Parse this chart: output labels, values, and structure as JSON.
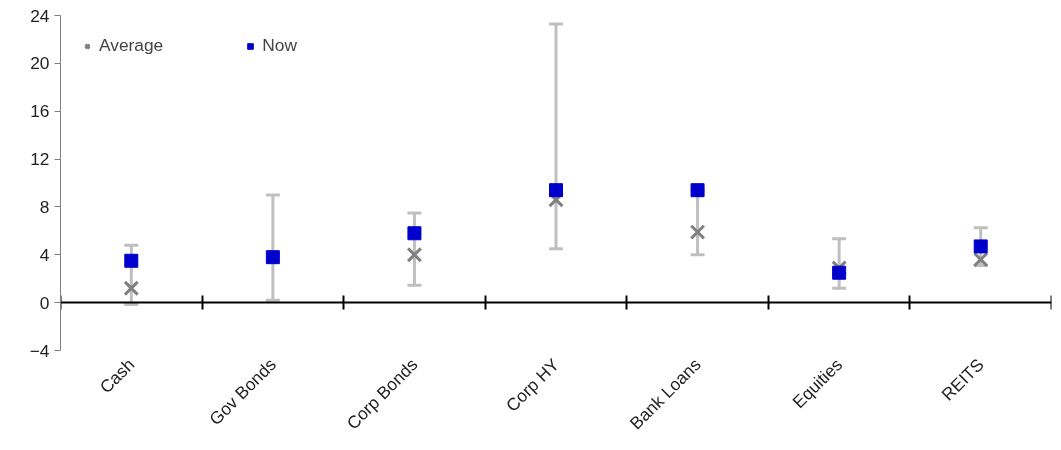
{
  "chart_data": {
    "type": "scatter",
    "categories": [
      "Cash",
      "Gov Bonds",
      "Corp Bonds",
      "Corp HY",
      "Bank Loans",
      "Equities",
      "REITS"
    ],
    "series": [
      {
        "name": "Average",
        "color": "#808080",
        "marker": "cross",
        "values": [
          1.2,
          null,
          4.0,
          8.6,
          5.9,
          2.9,
          3.6
        ]
      },
      {
        "name": "Now",
        "color": "#0000cc",
        "marker": "square",
        "values": [
          3.5,
          3.8,
          5.8,
          9.4,
          9.4,
          2.5,
          4.7
        ],
        "errors": [
          [
            -0.15,
            4.8
          ],
          [
            0.2,
            9.0
          ],
          [
            1.45,
            7.5
          ],
          [
            4.5,
            23.3
          ],
          [
            4.0,
            9.4
          ],
          [
            1.2,
            5.35
          ],
          [
            3.1,
            6.25
          ]
        ]
      }
    ],
    "ylim": [
      -4,
      24
    ],
    "yticks": [
      -4,
      0,
      4,
      8,
      12,
      16,
      20,
      24
    ],
    "legend": "top left"
  }
}
